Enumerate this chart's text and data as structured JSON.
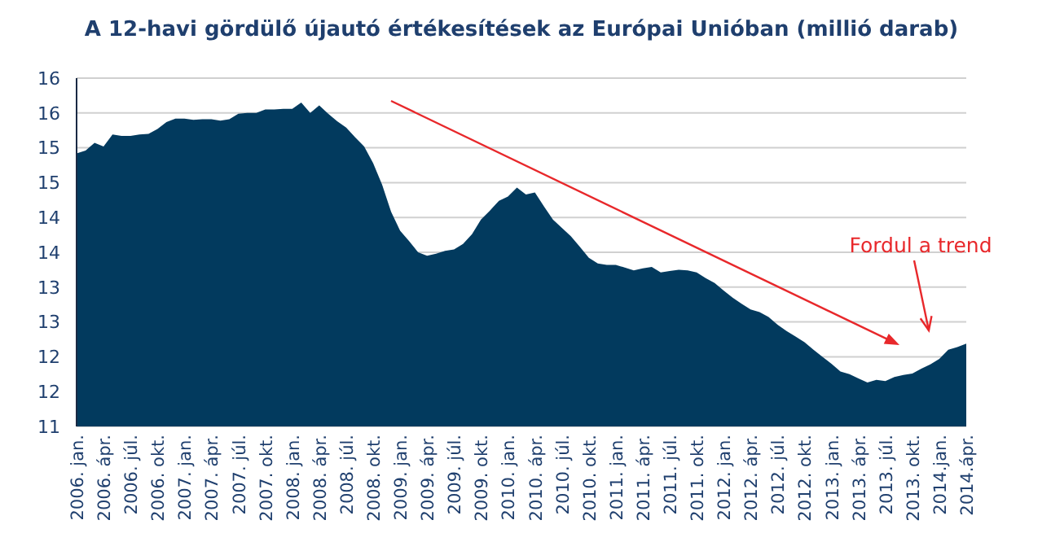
{
  "chart_data": {
    "type": "area",
    "title": "A 12-havi gördülő újautó értékesítések az Európai Unióban (millió darab)",
    "categories": [
      "2006. jan.",
      null,
      null,
      "2006. ápr.",
      null,
      null,
      "2006. júl.",
      null,
      null,
      "2006. okt.",
      null,
      null,
      "2007. jan.",
      null,
      null,
      "2007. ápr.",
      null,
      null,
      "2007. júl.",
      null,
      null,
      "2007. okt.",
      null,
      null,
      "2008. jan.",
      null,
      null,
      "2008. ápr.",
      null,
      null,
      "2008. júl.",
      null,
      null,
      "2008. okt.",
      null,
      null,
      "2009. jan.",
      null,
      null,
      "2009. ápr.",
      null,
      null,
      "2009. júl.",
      null,
      null,
      "2009. okt.",
      null,
      null,
      "2010. jan.",
      null,
      null,
      "2010. ápr.",
      null,
      null,
      "2010. júl.",
      null,
      null,
      "2010. okt.",
      null,
      null,
      "2011. jan.",
      null,
      null,
      "2011. ápr.",
      null,
      null,
      "2011. júl.",
      null,
      null,
      "2011. okt.",
      null,
      null,
      "2012. jan.",
      null,
      null,
      "2012. ápr.",
      null,
      null,
      "2012. júl.",
      null,
      null,
      "2012. okt.",
      null,
      null,
      "2013. jan.",
      null,
      null,
      "2013. ápr.",
      null,
      null,
      "2013. júl.",
      null,
      null,
      "2013. okt.",
      null,
      null,
      "2014.jan.",
      null,
      null,
      "2014.ápr."
    ],
    "series": [
      {
        "color": "#023a5e",
        "values": [
          14.92,
          14.96,
          15.07,
          15.02,
          15.19,
          15.17,
          15.17,
          15.19,
          15.2,
          15.27,
          15.37,
          15.42,
          15.42,
          15.4,
          15.41,
          15.41,
          15.39,
          15.41,
          15.49,
          15.5,
          15.5,
          15.55,
          15.55,
          15.56,
          15.56,
          15.65,
          15.5,
          15.61,
          15.49,
          15.38,
          15.29,
          15.15,
          15.02,
          14.78,
          14.47,
          14.08,
          13.81,
          13.66,
          13.5,
          13.45,
          13.48,
          13.52,
          13.54,
          13.62,
          13.76,
          13.97,
          14.1,
          14.24,
          14.3,
          14.43,
          14.33,
          14.36,
          14.16,
          13.97,
          13.85,
          13.73,
          13.58,
          13.42,
          13.34,
          13.32,
          13.32,
          13.28,
          13.24,
          13.27,
          13.29,
          13.21,
          13.23,
          13.25,
          13.24,
          13.21,
          13.13,
          13.06,
          12.95,
          12.85,
          12.76,
          12.68,
          12.64,
          12.57,
          12.46,
          12.37,
          12.29,
          12.21,
          12.1,
          12.0,
          11.9,
          11.79,
          11.75,
          11.69,
          11.63,
          11.67,
          11.65,
          11.71,
          11.74,
          11.76,
          11.83,
          11.89,
          11.97,
          12.1,
          12.14,
          12.19
        ]
      }
    ],
    "ylim": [
      11,
      16
    ],
    "yticks": [
      {
        "value": 11,
        "label": "11"
      },
      {
        "value": 11.5,
        "label": "12"
      },
      {
        "value": 12,
        "label": "12"
      },
      {
        "value": 12.5,
        "label": "13"
      },
      {
        "value": 13,
        "label": "13"
      },
      {
        "value": 13.5,
        "label": "14"
      },
      {
        "value": 14,
        "label": "14"
      },
      {
        "value": 14.5,
        "label": "15"
      },
      {
        "value": 15,
        "label": "15"
      },
      {
        "value": 15.5,
        "label": "16"
      },
      {
        "value": 16,
        "label": "16"
      }
    ],
    "grid": "y",
    "annotations": [
      "Fordul a trend"
    ]
  }
}
